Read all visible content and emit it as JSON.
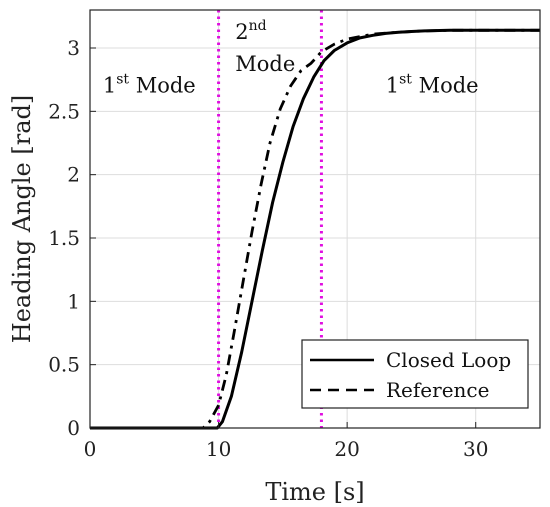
{
  "chart_data": {
    "type": "line",
    "xlabel": "Time [s]",
    "ylabel": "Heading Angle [rad]",
    "xlim": [
      0,
      35
    ],
    "ylim": [
      0,
      3.3
    ],
    "xticks": [
      0,
      10,
      20,
      30
    ],
    "yticks": [
      0,
      0.5,
      1,
      1.5,
      2,
      2.5,
      3
    ],
    "grid": true,
    "legend": {
      "placement": "bottom-right",
      "entries": [
        "Closed Loop",
        "Reference"
      ]
    },
    "series": [
      {
        "name": "Closed Loop",
        "style": "solid",
        "color": "#000000",
        "x": [
          0,
          9.9,
          10.3,
          11,
          11.8,
          12.6,
          13.4,
          14.2,
          15,
          15.8,
          16.6,
          17.4,
          18.2,
          19,
          20,
          21,
          22,
          23,
          24,
          25,
          26,
          28,
          30,
          32,
          35
        ],
        "y": [
          0,
          0,
          0.05,
          0.25,
          0.6,
          1.0,
          1.4,
          1.78,
          2.1,
          2.38,
          2.6,
          2.77,
          2.9,
          2.98,
          3.04,
          3.08,
          3.1,
          3.115,
          3.125,
          3.13,
          3.135,
          3.14,
          3.14,
          3.14,
          3.14
        ]
      },
      {
        "name": "Reference",
        "style": "dash-dot",
        "color": "#000000",
        "x": [
          0,
          8.8,
          9.3,
          10,
          10.6,
          11.2,
          11.9,
          12.6,
          13.3,
          14,
          14.8,
          15.6,
          16.4,
          17.2,
          18,
          19,
          20,
          21,
          22,
          24,
          26,
          28,
          30,
          32,
          35
        ],
        "y": [
          0,
          0,
          0.05,
          0.18,
          0.42,
          0.75,
          1.15,
          1.55,
          1.92,
          2.25,
          2.52,
          2.7,
          2.82,
          2.88,
          2.97,
          3.03,
          3.07,
          3.09,
          3.11,
          3.125,
          3.135,
          3.14,
          3.14,
          3.14,
          3.14
        ]
      }
    ],
    "vlines": [
      {
        "x": 10,
        "color": "#e010e0",
        "style": "dotted"
      },
      {
        "x": 18,
        "color": "#e010e0",
        "style": "dotted"
      }
    ],
    "annotations": [
      {
        "text": "1",
        "sup": "st",
        "rest": " Mode",
        "color": "#111111",
        "x": 1.0,
        "y": 2.65
      },
      {
        "text": "2",
        "sup": "nd",
        "rest": "",
        "color": "#e010e0",
        "x": 11.3,
        "y": 3.07
      },
      {
        "text": "Mode",
        "sup": "",
        "rest": "",
        "color": "#e010e0",
        "x": 11.3,
        "y": 2.82
      },
      {
        "text": "1",
        "sup": "st",
        "rest": " Mode",
        "color": "#111111",
        "x": 23.0,
        "y": 2.65
      }
    ]
  }
}
